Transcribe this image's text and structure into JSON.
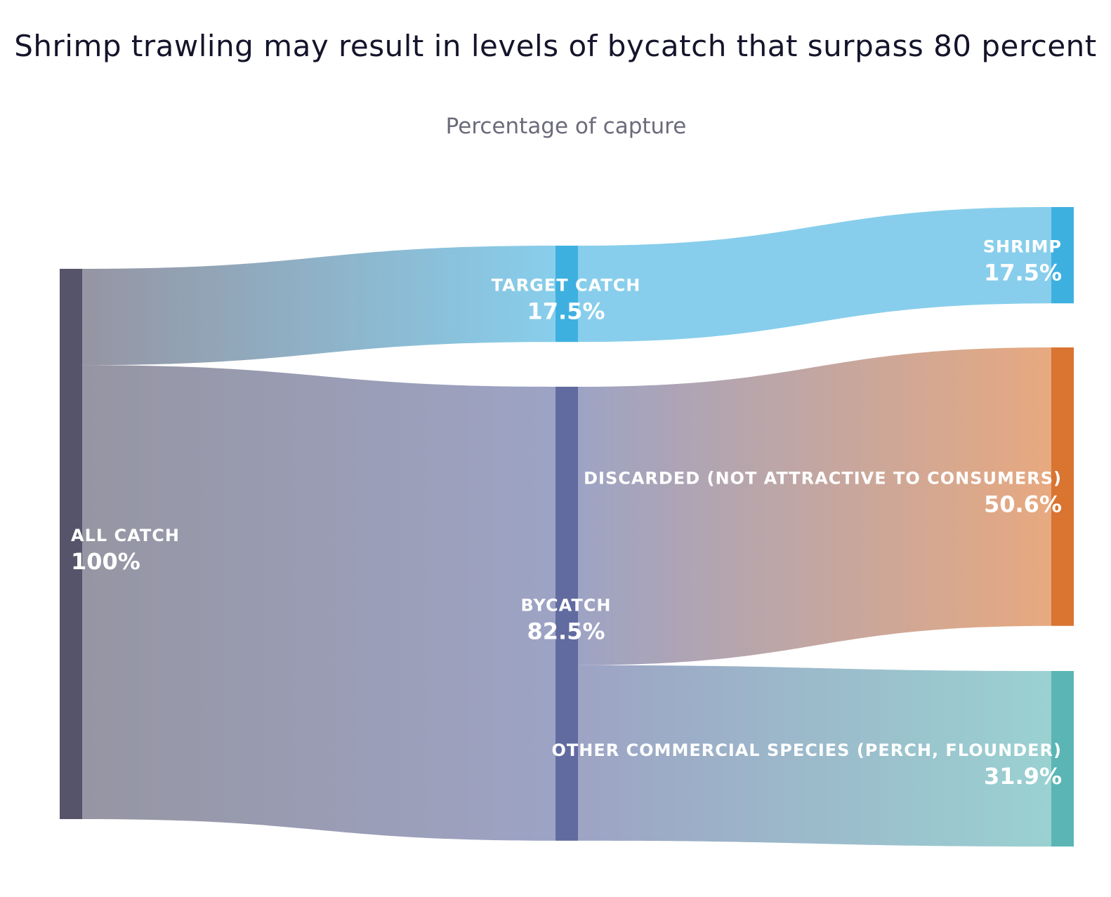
{
  "chart_data": {
    "type": "sankey",
    "title": "Shrimp trawling may result in levels of bycatch that surpass 80 percent",
    "subtitle": "Percentage of capture",
    "nodes": [
      {
        "id": "all",
        "label": "ALL CATCH",
        "value_label": "100%",
        "value": 100,
        "color": "#55546a"
      },
      {
        "id": "target",
        "label": "TARGET CATCH",
        "value_label": "17.5%",
        "value": 17.5,
        "color": "#3eb0e0"
      },
      {
        "id": "bycatch",
        "label": "BYCATCH",
        "value_label": "82.5%",
        "value": 82.5,
        "color": "#616ba0"
      },
      {
        "id": "shrimp",
        "label": "SHRIMP",
        "value_label": "17.5%",
        "value": 17.5,
        "color": "#3eb0e0"
      },
      {
        "id": "discarded",
        "label": "DISCARDED (NOT ATTRACTIVE TO CONSUMERS)",
        "value_label": "50.6%",
        "value": 50.6,
        "color": "#d97431"
      },
      {
        "id": "other",
        "label": "OTHER COMMERCIAL SPECIES (PERCH, FLOUNDER)",
        "value_label": "31.9%",
        "value": 31.9,
        "color": "#5bb5b5"
      }
    ],
    "links": [
      {
        "source": "all",
        "target": "target",
        "value": 17.5
      },
      {
        "source": "all",
        "target": "bycatch",
        "value": 82.5
      },
      {
        "source": "target",
        "target": "shrimp",
        "value": 17.5
      },
      {
        "source": "bycatch",
        "target": "discarded",
        "value": 50.6
      },
      {
        "source": "bycatch",
        "target": "other",
        "value": 31.9
      }
    ]
  }
}
